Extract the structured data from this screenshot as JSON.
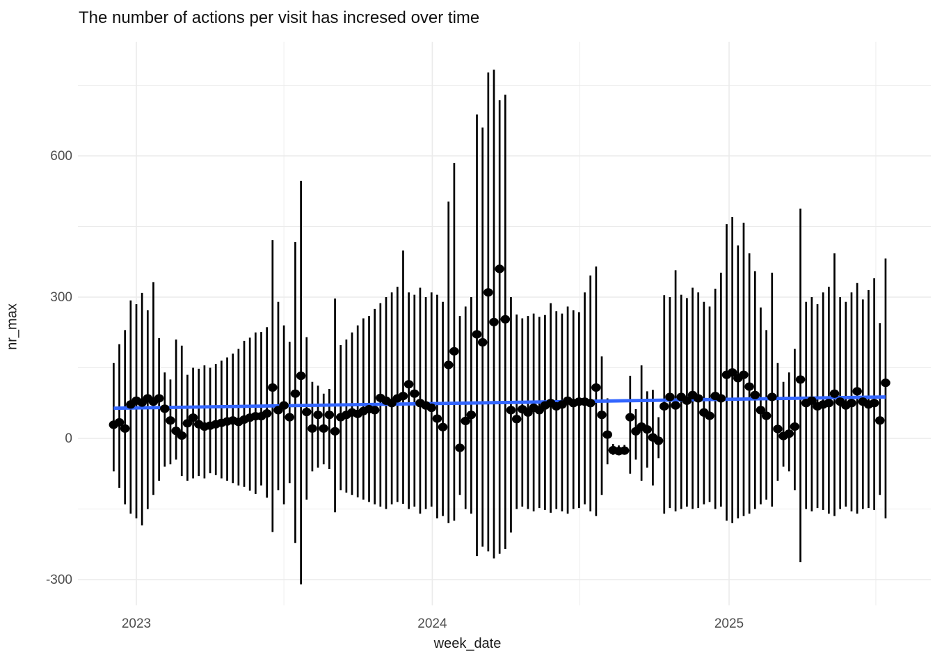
{
  "chart_data": {
    "type": "scatter",
    "title": "The number of actions per visit has incresed over time",
    "xlabel": "week_date",
    "ylabel": "nr_max",
    "legend": "none",
    "grid": "on",
    "point_color": "#000000",
    "errorbar_color": "#000000",
    "grid_color": "#ebebeb",
    "tick_text_color": "#4d4d4d",
    "background": "#ffffff",
    "ylim": [
      -335,
      845
    ],
    "x_domain": [
      "2022-11-20",
      "2025-09-20"
    ],
    "y_ticks": [
      {
        "label": "600",
        "value": 600
      },
      {
        "label": "300",
        "value": 300
      },
      {
        "label": "0",
        "value": 0
      },
      {
        "label": "-300",
        "value": -300
      }
    ],
    "y_minor": [
      750,
      450,
      150,
      -150
    ],
    "x_ticks": [
      {
        "label": "2023",
        "date": "2023-01-01"
      },
      {
        "label": "2024",
        "date": "2024-01-01"
      },
      {
        "label": "2025",
        "date": "2025-01-01"
      }
    ],
    "x_minor": [
      "2023-07-02",
      "2024-07-01",
      "2025-07-01"
    ],
    "trend": {
      "color": "#3366FF",
      "x1": "2022-12-04",
      "y1": 64,
      "x2": "2025-07-13",
      "y2": 88
    },
    "points_format": [
      "week_date",
      "nr_value_dot",
      "range_low",
      "range_high"
    ],
    "points": [
      [
        "2022-12-04",
        29,
        -70,
        160
      ],
      [
        "2022-12-11",
        34,
        -105,
        200
      ],
      [
        "2022-12-18",
        21,
        -140,
        230
      ],
      [
        "2022-12-25",
        72,
        -160,
        293
      ],
      [
        "2023-01-01",
        80,
        -170,
        285
      ],
      [
        "2023-01-08",
        76,
        -185,
        309
      ],
      [
        "2023-01-15",
        85,
        -150,
        272
      ],
      [
        "2023-01-22",
        78,
        -120,
        332
      ],
      [
        "2023-01-29",
        85,
        -90,
        213
      ],
      [
        "2023-02-05",
        63,
        -60,
        140
      ],
      [
        "2023-02-12",
        38,
        -55,
        125
      ],
      [
        "2023-02-19",
        16,
        -45,
        210
      ],
      [
        "2023-02-26",
        6,
        -80,
        197
      ],
      [
        "2023-03-05",
        32,
        -90,
        135
      ],
      [
        "2023-03-12",
        44,
        -85,
        150
      ],
      [
        "2023-03-19",
        30,
        -80,
        148
      ],
      [
        "2023-03-26",
        25,
        -85,
        155
      ],
      [
        "2023-04-02",
        27,
        -74,
        150
      ],
      [
        "2023-04-09",
        30,
        -78,
        158
      ],
      [
        "2023-04-16",
        33,
        -85,
        165
      ],
      [
        "2023-04-23",
        36,
        -90,
        172
      ],
      [
        "2023-04-30",
        38,
        -95,
        180
      ],
      [
        "2023-05-07",
        35,
        -100,
        190
      ],
      [
        "2023-05-14",
        40,
        -103,
        207
      ],
      [
        "2023-05-21",
        44,
        -111,
        214
      ],
      [
        "2023-05-28",
        47,
        -118,
        225
      ],
      [
        "2023-06-04",
        47,
        -100,
        226
      ],
      [
        "2023-06-11",
        53,
        -126,
        236
      ],
      [
        "2023-06-18",
        108,
        -199,
        421
      ],
      [
        "2023-06-25",
        60,
        -110,
        290
      ],
      [
        "2023-07-02",
        70,
        -140,
        240
      ],
      [
        "2023-07-09",
        45,
        -95,
        205
      ],
      [
        "2023-07-16",
        95,
        -222,
        417
      ],
      [
        "2023-07-23",
        133,
        -310,
        547
      ],
      [
        "2023-07-30",
        56,
        -130,
        215
      ],
      [
        "2023-08-06",
        21,
        -70,
        120
      ],
      [
        "2023-08-13",
        50,
        -62,
        112
      ],
      [
        "2023-08-20",
        21,
        -55,
        95
      ],
      [
        "2023-08-27",
        50,
        -65,
        105
      ],
      [
        "2023-09-03",
        15,
        -157,
        297
      ],
      [
        "2023-09-10",
        45,
        -110,
        198
      ],
      [
        "2023-09-17",
        50,
        -115,
        210
      ],
      [
        "2023-09-24",
        55,
        -120,
        225
      ],
      [
        "2023-10-01",
        52,
        -125,
        240
      ],
      [
        "2023-10-08",
        58,
        -130,
        255
      ],
      [
        "2023-10-15",
        62,
        -135,
        260
      ],
      [
        "2023-10-22",
        60,
        -140,
        275
      ],
      [
        "2023-10-29",
        86,
        -145,
        287
      ],
      [
        "2023-11-05",
        80,
        -150,
        300
      ],
      [
        "2023-11-12",
        75,
        -140,
        310
      ],
      [
        "2023-11-19",
        85,
        -135,
        322
      ],
      [
        "2023-11-26",
        90,
        -139,
        399
      ],
      [
        "2023-12-03",
        115,
        -150,
        310
      ],
      [
        "2023-12-10",
        95,
        -145,
        305
      ],
      [
        "2023-12-17",
        75,
        -160,
        320
      ],
      [
        "2023-12-24",
        70,
        -150,
        300
      ],
      [
        "2023-12-31",
        65,
        -145,
        310
      ],
      [
        "2024-01-07",
        42,
        -170,
        305
      ],
      [
        "2024-01-14",
        24,
        -165,
        290
      ],
      [
        "2024-01-21",
        156,
        -180,
        503
      ],
      [
        "2024-01-28",
        185,
        -175,
        585
      ],
      [
        "2024-02-04",
        -20,
        -120,
        260
      ],
      [
        "2024-02-11",
        37,
        -150,
        280
      ],
      [
        "2024-02-18",
        50,
        -160,
        300
      ],
      [
        "2024-02-25",
        221,
        -250,
        688
      ],
      [
        "2024-03-03",
        204,
        -230,
        660
      ],
      [
        "2024-03-10",
        310,
        -240,
        777
      ],
      [
        "2024-03-17",
        247,
        -255,
        783
      ],
      [
        "2024-03-24",
        360,
        -245,
        718
      ],
      [
        "2024-03-31",
        253,
        -235,
        730
      ],
      [
        "2024-04-07",
        60,
        -200,
        300
      ],
      [
        "2024-04-14",
        41,
        -150,
        263
      ],
      [
        "2024-04-21",
        62,
        -145,
        255
      ],
      [
        "2024-04-28",
        55,
        -150,
        260
      ],
      [
        "2024-05-05",
        65,
        -155,
        265
      ],
      [
        "2024-05-12",
        60,
        -148,
        258
      ],
      [
        "2024-05-19",
        70,
        -152,
        262
      ],
      [
        "2024-05-26",
        75,
        -158,
        287
      ],
      [
        "2024-06-02",
        68,
        -150,
        270
      ],
      [
        "2024-06-09",
        72,
        -155,
        265
      ],
      [
        "2024-06-16",
        80,
        -160,
        280
      ],
      [
        "2024-06-23",
        75,
        -150,
        272
      ],
      [
        "2024-06-30",
        78,
        -148,
        268
      ],
      [
        "2024-07-07",
        78,
        -140,
        310
      ],
      [
        "2024-07-14",
        75,
        -155,
        346
      ],
      [
        "2024-07-21",
        108,
        -165,
        365
      ],
      [
        "2024-07-28",
        50,
        -120,
        174
      ],
      [
        "2024-08-04",
        8,
        -55,
        85
      ],
      [
        "2024-08-11",
        -25,
        -35,
        -12
      ],
      [
        "2024-08-18",
        -27,
        -36,
        -15
      ],
      [
        "2024-08-25",
        -26,
        -33,
        -14
      ],
      [
        "2024-09-01",
        45,
        -75,
        133
      ],
      [
        "2024-09-08",
        15,
        -45,
        62
      ],
      [
        "2024-09-15",
        25,
        -90,
        155
      ],
      [
        "2024-09-22",
        19,
        -62,
        100
      ],
      [
        "2024-09-29",
        2,
        -100,
        103
      ],
      [
        "2024-10-06",
        -5,
        -42,
        45
      ],
      [
        "2024-10-13",
        68,
        -160,
        304
      ],
      [
        "2024-10-20",
        88,
        -148,
        300
      ],
      [
        "2024-10-27",
        70,
        -155,
        357
      ],
      [
        "2024-11-03",
        88,
        -150,
        305
      ],
      [
        "2024-11-10",
        80,
        -145,
        298
      ],
      [
        "2024-11-17",
        92,
        -150,
        320
      ],
      [
        "2024-11-24",
        85,
        -148,
        310
      ],
      [
        "2024-12-01",
        55,
        -140,
        290
      ],
      [
        "2024-12-08",
        48,
        -135,
        280
      ],
      [
        "2024-12-15",
        90,
        -150,
        318
      ],
      [
        "2024-12-22",
        85,
        -145,
        352
      ],
      [
        "2024-12-29",
        135,
        -175,
        455
      ],
      [
        "2025-01-05",
        140,
        -180,
        470
      ],
      [
        "2025-01-12",
        128,
        -170,
        410
      ],
      [
        "2025-01-19",
        135,
        -165,
        458
      ],
      [
        "2025-01-26",
        110,
        -160,
        393
      ],
      [
        "2025-02-02",
        92,
        -150,
        355
      ],
      [
        "2025-02-09",
        60,
        -140,
        278
      ],
      [
        "2025-02-16",
        48,
        -130,
        230
      ],
      [
        "2025-02-23",
        88,
        -145,
        352
      ],
      [
        "2025-03-02",
        20,
        -90,
        160
      ],
      [
        "2025-03-09",
        5,
        -60,
        120
      ],
      [
        "2025-03-16",
        10,
        -70,
        140
      ],
      [
        "2025-03-23",
        25,
        -110,
        190
      ],
      [
        "2025-03-30",
        125,
        -263,
        488
      ],
      [
        "2025-04-06",
        75,
        -150,
        290
      ],
      [
        "2025-04-13",
        80,
        -155,
        300
      ],
      [
        "2025-04-20",
        68,
        -148,
        285
      ],
      [
        "2025-04-27",
        72,
        -152,
        310
      ],
      [
        "2025-05-04",
        75,
        -160,
        322
      ],
      [
        "2025-05-11",
        95,
        -165,
        393
      ],
      [
        "2025-05-18",
        78,
        -150,
        300
      ],
      [
        "2025-05-25",
        70,
        -145,
        290
      ],
      [
        "2025-06-01",
        75,
        -155,
        310
      ],
      [
        "2025-06-08",
        100,
        -160,
        330
      ],
      [
        "2025-06-15",
        78,
        -150,
        295
      ],
      [
        "2025-06-22",
        72,
        -148,
        315
      ],
      [
        "2025-06-29",
        75,
        -152,
        340
      ],
      [
        "2025-07-06",
        38,
        -120,
        245
      ],
      [
        "2025-07-13",
        118,
        -170,
        382
      ]
    ]
  }
}
